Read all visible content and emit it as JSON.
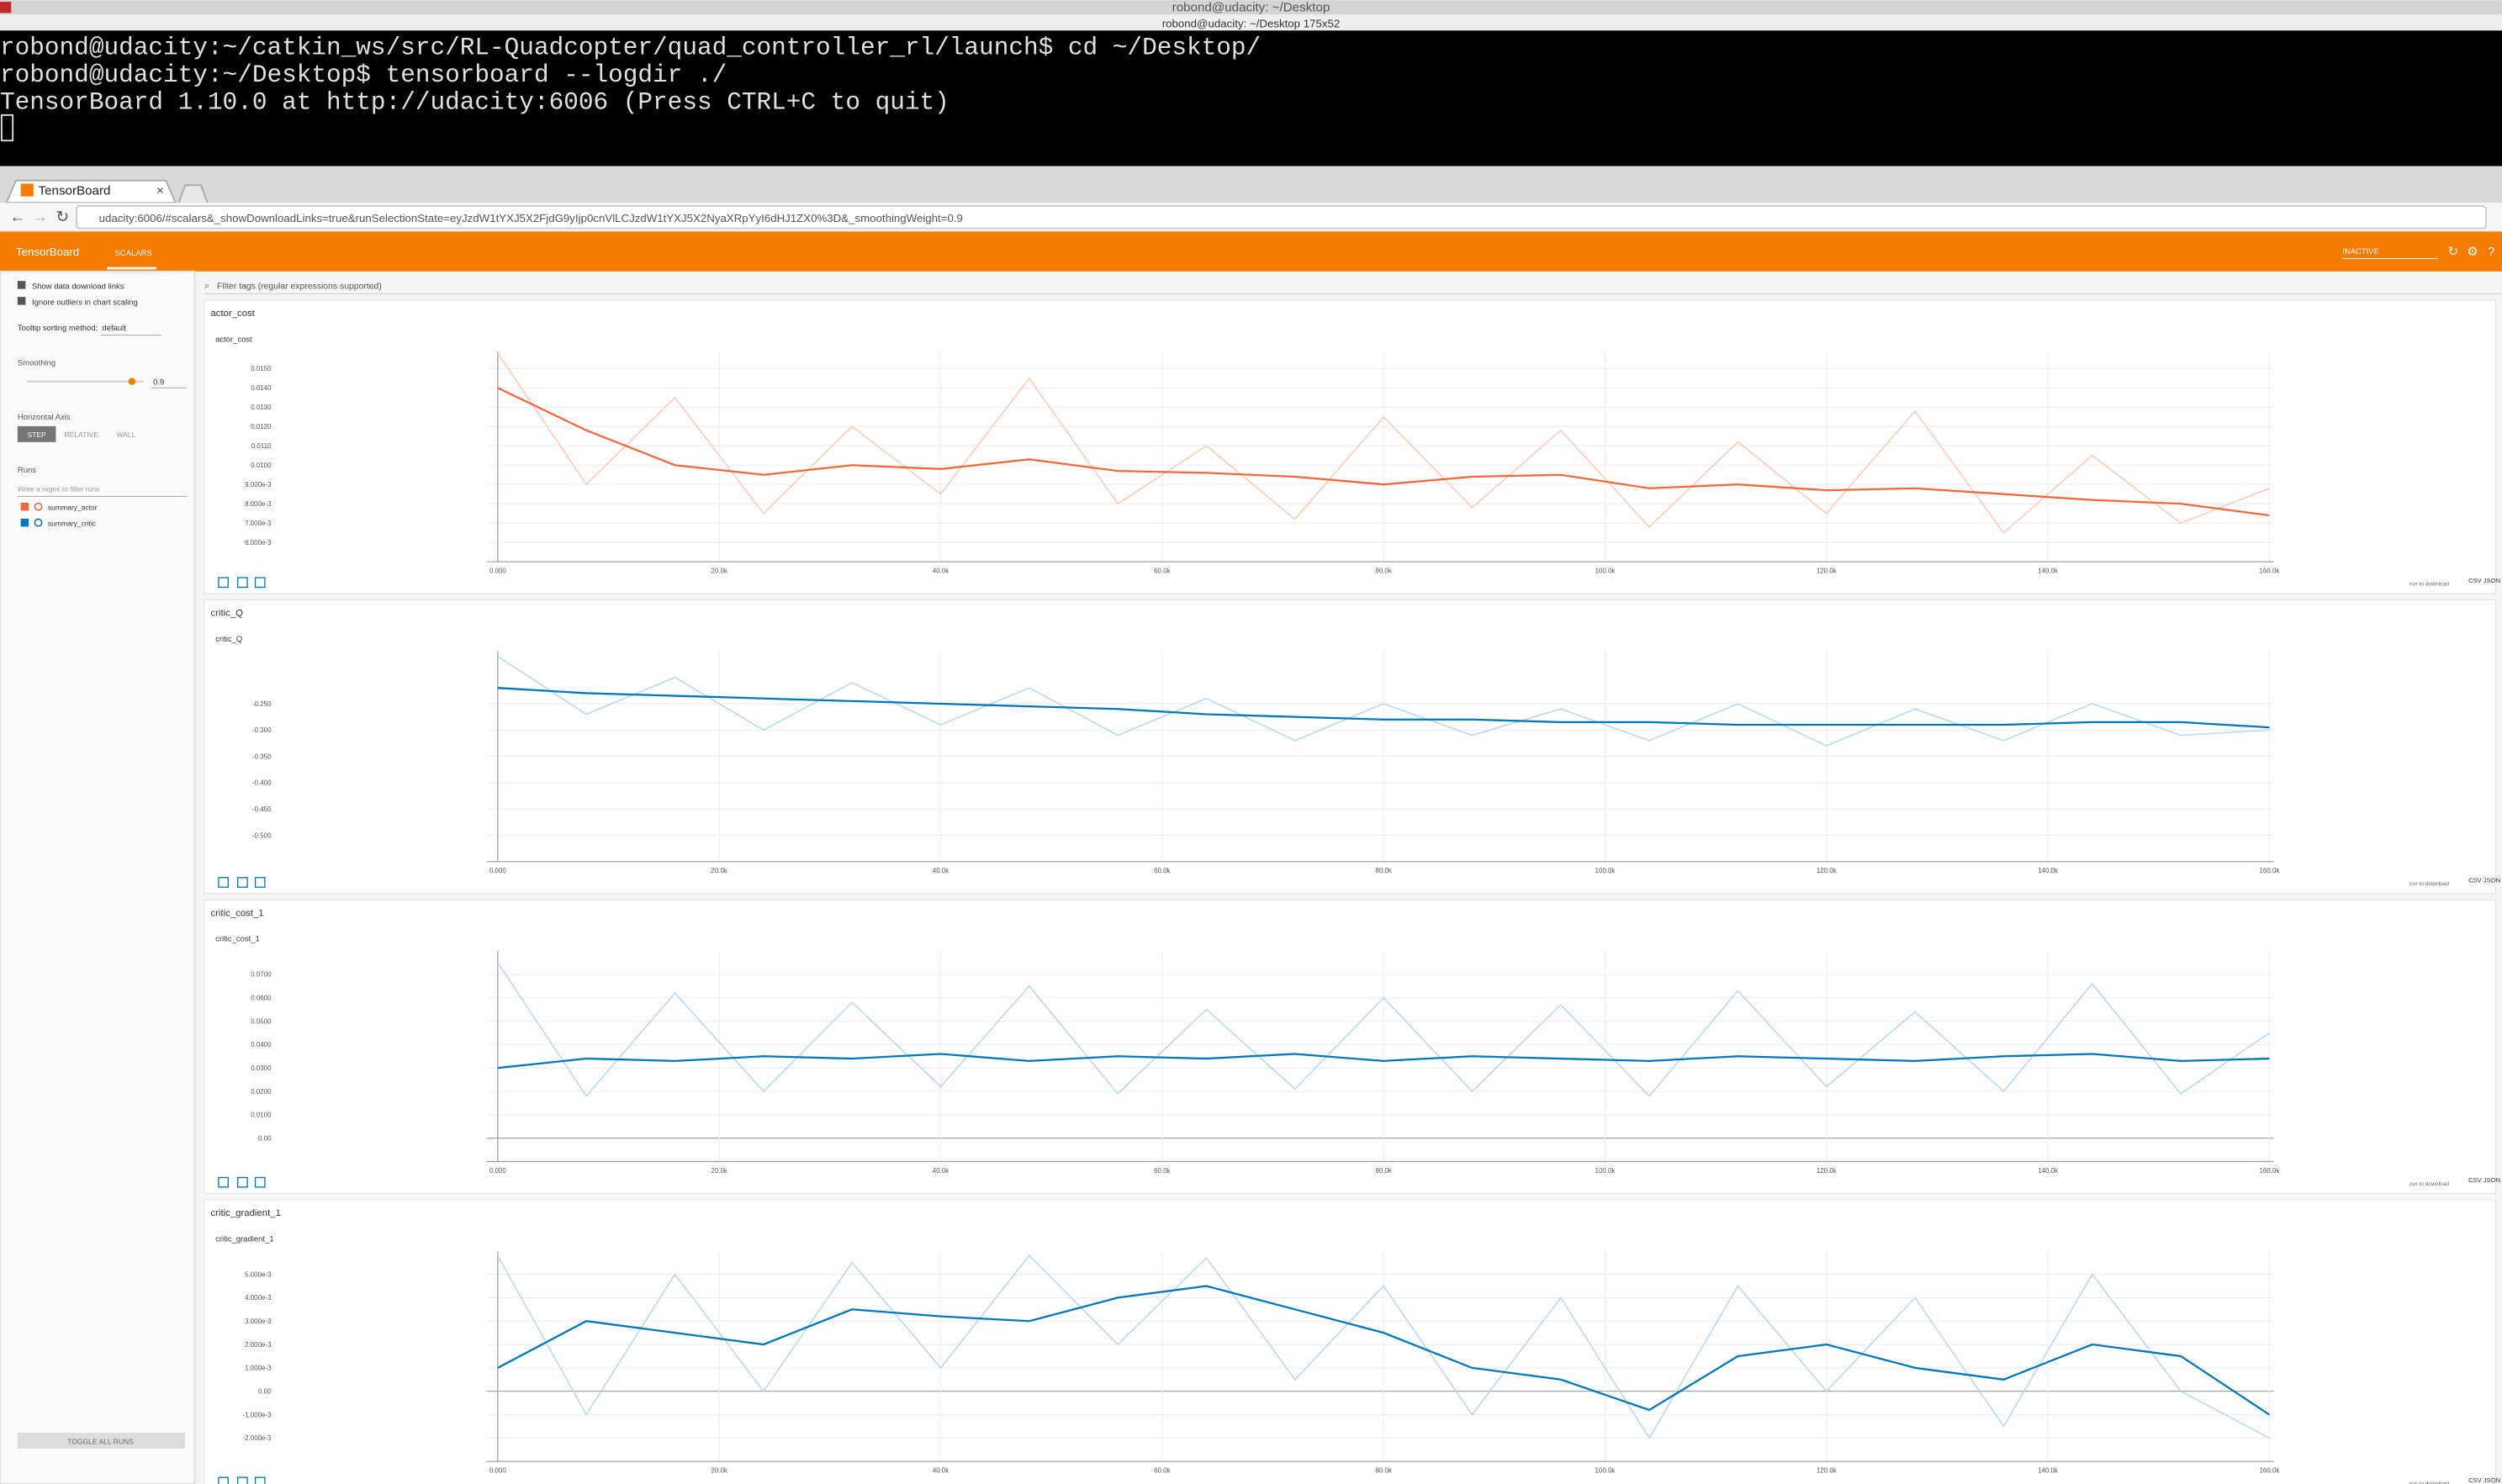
{
  "window": {
    "title": "robond@udacity: ~/Desktop",
    "subtitle": "robond@udacity: ~/Desktop 175x52"
  },
  "terminal": {
    "lines": [
      "robond@udacity:~/catkin_ws/src/RL-Quadcopter/quad_controller_rl/launch$ cd ~/Desktop/",
      "robond@udacity:~/Desktop$ tensorboard --logdir ./",
      "TensorBoard 1.10.0 at http://udacity:6006 (Press CTRL+C to quit)"
    ]
  },
  "browser": {
    "tab": "TensorBoard",
    "url": "udacity:6006/#scalars&_showDownloadLinks=true&runSelectionState=eyJzdW1tYXJ5X2FjdG9yIjp0cnVlLCJzdW1tYXJ5X2NyaXRpYyI6dHJ1ZX0%3D&_smoothingWeight=0.9"
  },
  "header": {
    "brand": "TensorBoard",
    "tab": "SCALARS",
    "status": "INACTIVE"
  },
  "sidebar": {
    "options": [
      "Show data download links",
      "Ignore outliers in chart scaling"
    ],
    "tooltip_label": "Tooltip sorting method:",
    "tooltip_value": "default",
    "smoothing_label": "Smoothing",
    "smoothing_value": 0.9,
    "axis_label": "Horizontal Axis",
    "axis_options": [
      "STEP",
      "RELATIVE",
      "WALL"
    ],
    "runs_label": "Runs",
    "runs_filter": "Write a regex to filter runs",
    "runs": [
      {
        "name": "summary_actor",
        "color": "#f1683c"
      },
      {
        "name": "summary_critic",
        "color": "#0077bb"
      }
    ],
    "toggle": "TOGGLE ALL RUNS"
  },
  "filter": "Filter tags (regular expressions supported)",
  "download": {
    "select": "run to download",
    "formats": "CSV JSON"
  },
  "chart_data": [
    {
      "type": "line",
      "section": "actor_cost",
      "title": "actor_cost",
      "grid": true,
      "x": [
        0,
        8000,
        16000,
        24000,
        32000,
        40000,
        48000,
        56000,
        64000,
        72000,
        80000,
        88000,
        96000,
        104000,
        112000,
        120000,
        128000,
        136000,
        144000,
        152000,
        160000
      ],
      "xlim": [
        -1000,
        160400
      ],
      "xticks": [
        {
          "value": 0,
          "label": "0.000"
        },
        {
          "value": 20000,
          "label": "20.0k"
        },
        {
          "value": 40000,
          "label": "40.0k"
        },
        {
          "value": 60000,
          "label": "60.0k"
        },
        {
          "value": 80000,
          "label": "80.0k"
        },
        {
          "value": 100000,
          "label": "100.0k"
        },
        {
          "value": 120000,
          "label": "120.0k"
        },
        {
          "value": 140000,
          "label": "140.0k"
        },
        {
          "value": 160000,
          "label": "160.0k"
        }
      ],
      "ylim": [
        0.005,
        0.0159
      ],
      "yticks": [
        {
          "value": 0.015,
          "label": "0.0150"
        },
        {
          "value": 0.014,
          "label": "0.0140"
        },
        {
          "value": 0.013,
          "label": "0.0130"
        },
        {
          "value": 0.012,
          "label": "0.0120"
        },
        {
          "value": 0.011,
          "label": "0.0110"
        },
        {
          "value": 0.01,
          "label": "0.0100"
        },
        {
          "value": 0.009,
          "label": "9.000e-3"
        },
        {
          "value": 0.008,
          "label": "8.000e-3"
        },
        {
          "value": 0.007,
          "label": "7.000e-3"
        },
        {
          "value": 0.006,
          "label": "6.000e-3"
        }
      ],
      "series": [
        {
          "color": "#fbc9b6",
          "values": [
            0.0158,
            0.009,
            0.0135,
            0.0075,
            0.012,
            0.0085,
            0.0145,
            0.008,
            0.011,
            0.0072,
            0.0125,
            0.0078,
            0.0118,
            0.0068,
            0.0112,
            0.0075,
            0.0128,
            0.0065,
            0.0105,
            0.007,
            0.0088
          ]
        },
        {
          "color": "#f1683c",
          "values": [
            0.014,
            0.0118,
            0.01,
            0.0095,
            0.01,
            0.0098,
            0.0103,
            0.0097,
            0.0096,
            0.0094,
            0.009,
            0.0094,
            0.0095,
            0.0088,
            0.009,
            0.0087,
            0.0088,
            0.0085,
            0.0082,
            0.008,
            0.0074
          ]
        }
      ]
    },
    {
      "type": "line",
      "section": "critic_Q",
      "title": "critic_Q",
      "grid": true,
      "x": [
        0,
        8000,
        16000,
        24000,
        32000,
        40000,
        48000,
        56000,
        64000,
        72000,
        80000,
        88000,
        96000,
        104000,
        112000,
        120000,
        128000,
        136000,
        144000,
        152000,
        160000
      ],
      "xlim": [
        -1000,
        160400
      ],
      "xticks": [
        {
          "value": 0,
          "label": "0.000"
        },
        {
          "value": 20000,
          "label": "20.0k"
        },
        {
          "value": 40000,
          "label": "40.0k"
        },
        {
          "value": 60000,
          "label": "60.0k"
        },
        {
          "value": 80000,
          "label": "80.0k"
        },
        {
          "value": 100000,
          "label": "100.0k"
        },
        {
          "value": 120000,
          "label": "120.0k"
        },
        {
          "value": 140000,
          "label": "140.0k"
        },
        {
          "value": 160000,
          "label": "160.0k"
        }
      ],
      "ylim": [
        -0.55,
        -0.15
      ],
      "yticks": [
        {
          "value": -0.25,
          "label": "-0.250"
        },
        {
          "value": -0.3,
          "label": "-0.300"
        },
        {
          "value": -0.35,
          "label": "-0.350"
        },
        {
          "value": -0.4,
          "label": "-0.400"
        },
        {
          "value": -0.45,
          "label": "-0.450"
        },
        {
          "value": -0.5,
          "label": "-0.500"
        }
      ],
      "series": [
        {
          "color": "#b5d8ec",
          "values": [
            -0.16,
            -0.27,
            -0.2,
            -0.3,
            -0.21,
            -0.29,
            -0.22,
            -0.31,
            -0.24,
            -0.32,
            -0.25,
            -0.31,
            -0.26,
            -0.32,
            -0.25,
            -0.33,
            -0.26,
            -0.32,
            -0.25,
            -0.31,
            -0.3
          ]
        },
        {
          "color": "#0077bb",
          "values": [
            -0.22,
            -0.23,
            -0.235,
            -0.24,
            -0.245,
            -0.25,
            -0.255,
            -0.26,
            -0.27,
            -0.275,
            -0.28,
            -0.28,
            -0.285,
            -0.285,
            -0.29,
            -0.29,
            -0.29,
            -0.29,
            -0.285,
            -0.285,
            -0.295
          ]
        }
      ]
    },
    {
      "type": "line",
      "section": "critic_cost_1",
      "title": "critic_cost_1",
      "grid": true,
      "x": [
        0,
        8000,
        16000,
        24000,
        32000,
        40000,
        48000,
        56000,
        64000,
        72000,
        80000,
        88000,
        96000,
        104000,
        112000,
        120000,
        128000,
        136000,
        144000,
        152000,
        160000
      ],
      "xlim": [
        -1000,
        160400
      ],
      "xticks": [
        {
          "value": 0,
          "label": "0.000"
        },
        {
          "value": 20000,
          "label": "20.0k"
        },
        {
          "value": 40000,
          "label": "40.0k"
        },
        {
          "value": 60000,
          "label": "60.0k"
        },
        {
          "value": 80000,
          "label": "80.0k"
        },
        {
          "value": 100000,
          "label": "100.0k"
        },
        {
          "value": 120000,
          "label": "120.0k"
        },
        {
          "value": 140000,
          "label": "140.0k"
        },
        {
          "value": 160000,
          "label": "160.0k"
        }
      ],
      "ylim": [
        -0.01,
        0.08
      ],
      "yticks": [
        {
          "value": 0.07,
          "label": "0.0700"
        },
        {
          "value": 0.06,
          "label": "0.0600"
        },
        {
          "value": 0.05,
          "label": "0.0500"
        },
        {
          "value": 0.04,
          "label": "0.0400"
        },
        {
          "value": 0.03,
          "label": "0.0300"
        },
        {
          "value": 0.02,
          "label": "0.0200"
        },
        {
          "value": 0.01,
          "label": "0.0100"
        },
        {
          "value": 0,
          "label": "0.00"
        }
      ],
      "series": [
        {
          "color": "#b5d8ec",
          "values": [
            0.075,
            0.018,
            0.062,
            0.02,
            0.058,
            0.022,
            0.065,
            0.019,
            0.055,
            0.021,
            0.06,
            0.02,
            0.057,
            0.018,
            0.063,
            0.022,
            0.054,
            0.02,
            0.066,
            0.019,
            0.045
          ]
        },
        {
          "color": "#0077bb",
          "values": [
            0.03,
            0.034,
            0.033,
            0.035,
            0.034,
            0.036,
            0.033,
            0.035,
            0.034,
            0.036,
            0.033,
            0.035,
            0.034,
            0.033,
            0.035,
            0.034,
            0.033,
            0.035,
            0.036,
            0.033,
            0.034
          ]
        }
      ]
    },
    {
      "type": "line",
      "section": "critic_gradient_1",
      "title": "critic_gradient_1",
      "grid": true,
      "x": [
        0,
        8000,
        16000,
        24000,
        32000,
        40000,
        48000,
        56000,
        64000,
        72000,
        80000,
        88000,
        96000,
        104000,
        112000,
        120000,
        128000,
        136000,
        144000,
        152000,
        160000
      ],
      "xlim": [
        -1000,
        160400
      ],
      "xticks": [
        {
          "value": 0,
          "label": "0.000"
        },
        {
          "value": 20000,
          "label": "20.0k"
        },
        {
          "value": 40000,
          "label": "40.0k"
        },
        {
          "value": 60000,
          "label": "60.0k"
        },
        {
          "value": 80000,
          "label": "80.0k"
        },
        {
          "value": 100000,
          "label": "100.0k"
        },
        {
          "value": 120000,
          "label": "120.0k"
        },
        {
          "value": 140000,
          "label": "140.0k"
        },
        {
          "value": 160000,
          "label": "160.0k"
        }
      ],
      "ylim": [
        -0.003,
        0.006
      ],
      "yticks": [
        {
          "value": 0.005,
          "label": "5.000e-3"
        },
        {
          "value": 0.004,
          "label": "4.000e-3"
        },
        {
          "value": 0.003,
          "label": "3.000e-3"
        },
        {
          "value": 0.002,
          "label": "2.000e-3"
        },
        {
          "value": 0.001,
          "label": "1.000e-3"
        },
        {
          "value": 0,
          "label": "0.00"
        },
        {
          "value": -0.001,
          "label": "-1.000e-3"
        },
        {
          "value": -0.002,
          "label": "-2.000e-3"
        }
      ],
      "series": [
        {
          "color": "#b5d8ec",
          "values": [
            0.0058,
            -0.001,
            0.005,
            0.0,
            0.0055,
            0.001,
            0.0058,
            0.002,
            0.0057,
            0.0005,
            0.0045,
            -0.001,
            0.004,
            -0.002,
            0.0045,
            0.0,
            0.004,
            -0.0015,
            0.005,
            0.0,
            -0.002
          ]
        },
        {
          "color": "#0077bb",
          "values": [
            0.001,
            0.003,
            0.0025,
            0.002,
            0.0035,
            0.0032,
            0.003,
            0.004,
            0.0045,
            0.0035,
            0.0025,
            0.001,
            0.0005,
            -0.0008,
            0.0015,
            0.002,
            0.001,
            0.0005,
            0.002,
            0.0015,
            -0.001
          ]
        }
      ]
    }
  ]
}
